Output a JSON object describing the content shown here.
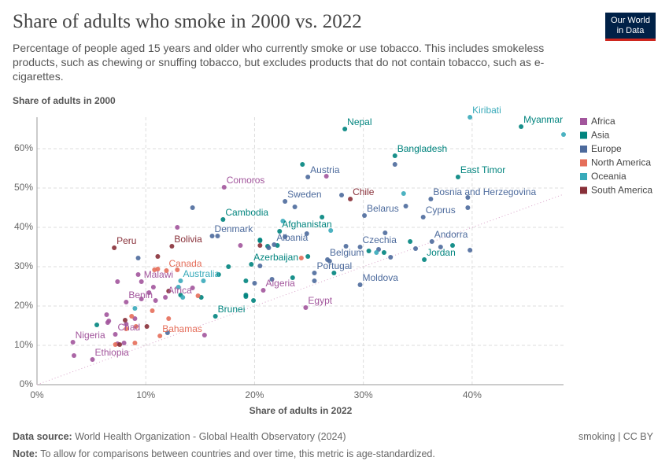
{
  "chart_data": {
    "type": "scatter",
    "title": "Share of adults who smoke in 2000 vs. 2022",
    "subtitle": "Percentage of people aged 15 years and older who currently smoke or use tobacco. This includes smokeless products, such as chewing or snuffing tobacco, but excludes products that do not contain tobacco, such as e-cigarettes.",
    "y_label": "Share of adults in 2000",
    "x_label": "Share of adults in 2022",
    "xlim": [
      0,
      48.4
    ],
    "ylim": [
      0,
      68
    ],
    "xticks": [
      {
        "value": 0,
        "label": "0%"
      },
      {
        "value": 10,
        "label": "10%"
      },
      {
        "value": 20,
        "label": "20%"
      },
      {
        "value": 30,
        "label": "30%"
      },
      {
        "value": 40,
        "label": "40%"
      }
    ],
    "yticks": [
      {
        "value": 0,
        "label": "0%"
      },
      {
        "value": 10,
        "label": "10%"
      },
      {
        "value": 20,
        "label": "20%"
      },
      {
        "value": 30,
        "label": "30%"
      },
      {
        "value": 40,
        "label": "40%"
      },
      {
        "value": 50,
        "label": "50%"
      },
      {
        "value": 60,
        "label": "60%"
      }
    ],
    "grid": true,
    "legend": "right",
    "series": [
      {
        "name": "Africa",
        "color": "#a2559c",
        "x": [
          17.2,
          9.6,
          20.8,
          24.7,
          11.8,
          8.2,
          7.2,
          3.3,
          5.1,
          3.4,
          6.4,
          6.5,
          7.4,
          8.2,
          9,
          9.6,
          10.3,
          10.9,
          7.4,
          9.3,
          12.9,
          10.7,
          18.7,
          14.3,
          15.4,
          26.6,
          8,
          6.6
        ],
        "y": [
          50.2,
          26.2,
          24,
          19.6,
          22.2,
          21,
          12.8,
          10.8,
          6.4,
          7.4,
          17.8,
          15.8,
          10.4,
          15.4,
          16.8,
          21.8,
          23.4,
          21.4,
          26.2,
          28,
          40,
          24.8,
          35.4,
          24.6,
          12.6,
          53,
          10.6,
          16.2
        ],
        "labels": [
          "Comoros",
          "Malawi",
          "Algeria",
          "Egypt",
          "Africa",
          "Benin",
          "Chad",
          "Nigeria",
          "Ethiopia",
          null,
          null,
          null,
          null,
          null,
          null,
          null,
          null,
          null,
          null,
          null,
          null,
          null,
          null,
          null,
          null,
          null,
          null,
          null
        ]
      },
      {
        "name": "Asia",
        "color": "#00847e",
        "x": [
          28.3,
          44.5,
          32.9,
          38.7,
          17.1,
          22.3,
          35.6,
          19.7,
          16.4,
          24.4,
          26.2,
          20.5,
          21.2,
          17.6,
          19.2,
          19.9,
          23.5,
          24.9,
          30.5,
          34.3,
          31.9,
          27.3,
          19.2,
          19.2,
          15.1,
          16.7,
          22.1,
          20.5,
          38.2,
          5.5,
          13.2
        ],
        "y": [
          65,
          65.6,
          58.2,
          52.8,
          42,
          39,
          31.8,
          30.6,
          17.4,
          56,
          42.6,
          36.6,
          35.2,
          30,
          22.8,
          21.4,
          27.2,
          32.6,
          34,
          36.4,
          33.6,
          28.4,
          26.4,
          22.4,
          22.2,
          28,
          35.4,
          36.8,
          35.4,
          15.2,
          22.8
        ],
        "labels": [
          "Nepal",
          "Myanmar",
          "Bangladesh",
          "East Timor",
          "Cambodia",
          "Afghanistan",
          "Jordan",
          "Azerbaijan",
          "Brunei",
          null,
          null,
          null,
          null,
          null,
          null,
          null,
          null,
          null,
          null,
          null,
          null,
          null,
          null,
          null,
          null,
          null,
          null,
          null,
          null,
          null,
          null
        ]
      },
      {
        "name": "Europe",
        "color": "#4c6a9c",
        "x": [
          24.9,
          22.8,
          36.2,
          30.1,
          35.5,
          16.1,
          21.8,
          36.3,
          29.7,
          26.7,
          25.5,
          29.7,
          14.3,
          16.6,
          9.3,
          32.9,
          33.9,
          39.6,
          39.6,
          32,
          32.5,
          34.8,
          37.1,
          39.8,
          24.8,
          22.8,
          21.3,
          20.5,
          20,
          21.6,
          25.5,
          28.4,
          31.4,
          26.9,
          23.7,
          28,
          12
        ],
        "y": [
          52.8,
          46.6,
          47.2,
          43,
          42.6,
          37.8,
          35.6,
          36.4,
          35,
          31.8,
          28.4,
          25.4,
          45,
          37.8,
          32.2,
          56,
          45.4,
          45,
          47.6,
          38.6,
          32.4,
          34.6,
          35,
          34.2,
          38.4,
          37.6,
          34.8,
          30.2,
          25.8,
          26.8,
          26.4,
          35.2,
          34.4,
          31.4,
          45.2,
          48.2,
          13.2
        ],
        "labels": [
          "Austria",
          "Sweden",
          "Bosnia and Herzegovina",
          "Belarus",
          "Cyprus",
          "Denmark",
          "Albania",
          "Andorra",
          "Czechia",
          "Belgium",
          "Portugal",
          "Moldova",
          null,
          null,
          null,
          null,
          null,
          null,
          null,
          null,
          null,
          null,
          null,
          null,
          null,
          null,
          null,
          null,
          null,
          null,
          null,
          null,
          null,
          null,
          null,
          null,
          null
        ]
      },
      {
        "name": "North America",
        "color": "#e56e5a",
        "x": [
          11.9,
          11.3,
          12.9,
          10.8,
          11.1,
          10.6,
          12.1,
          8.7,
          8.2,
          9.1,
          9,
          7.2,
          24.3,
          14.8
        ],
        "y": [
          29,
          12.4,
          29.2,
          29.2,
          29.4,
          18.8,
          16.8,
          17.4,
          14.2,
          14.8,
          10.6,
          10.2,
          32.2,
          22.6
        ],
        "labels": [
          "Canada",
          "Bahamas",
          null,
          null,
          null,
          null,
          null,
          null,
          null,
          null,
          null,
          null,
          null,
          null
        ]
      },
      {
        "name": "Oceania",
        "color": "#38aaba",
        "x": [
          39.8,
          13.2,
          22.6,
          27,
          33.7,
          48.4,
          13,
          15.3,
          31.2,
          13.4,
          9
        ],
        "y": [
          68,
          26.4,
          41.6,
          39.2,
          48.6,
          63.6,
          24.8,
          26.4,
          33.6,
          22.2,
          19.4
        ],
        "labels": [
          "Kiribati",
          "Australia",
          null,
          null,
          null,
          null,
          null,
          null,
          null,
          null,
          null
        ]
      },
      {
        "name": "South America",
        "color": "#883039",
        "x": [
          28.8,
          12.4,
          7.1,
          8.1,
          11.1,
          12.1,
          10.1,
          20.5,
          7.6
        ],
        "y": [
          47.2,
          35.2,
          34.8,
          16.4,
          32.6,
          23.8,
          14.8,
          35.4,
          10.2
        ],
        "labels": [
          "Chile",
          "Bolivia",
          "Peru",
          null,
          null,
          null,
          null,
          null,
          null
        ]
      }
    ]
  },
  "footer": {
    "source_label": "Data source:",
    "source": "World Health Organization - Global Health Observatory (2024)",
    "note_label": "Note:",
    "note": "To allow for comparisons between countries and over time, this metric is age-standardized.",
    "license": "smoking | CC BY"
  },
  "logo": {
    "line1": "Our World",
    "line2": "in Data"
  }
}
